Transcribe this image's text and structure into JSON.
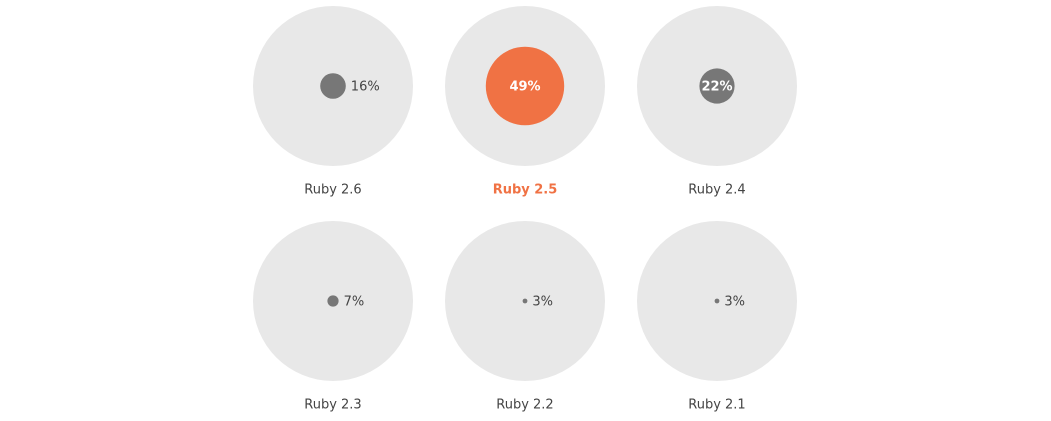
{
  "chart_data": {
    "type": "bubble",
    "categories": [
      "Ruby 2.6",
      "Ruby 2.5",
      "Ruby 2.4",
      "Ruby 2.3",
      "Ruby 2.2",
      "Ruby 2.1"
    ],
    "values": [
      16,
      49,
      22,
      7,
      3,
      3
    ],
    "value_labels": [
      "16%",
      "49%",
      "22%",
      "7%",
      "3%",
      "3%"
    ],
    "color": "#777777",
    "highlight": "Ruby 2.5",
    "highlight_color": "#f07244",
    "background_color": "#e8e8e8",
    "columns": 3,
    "max": 100
  }
}
